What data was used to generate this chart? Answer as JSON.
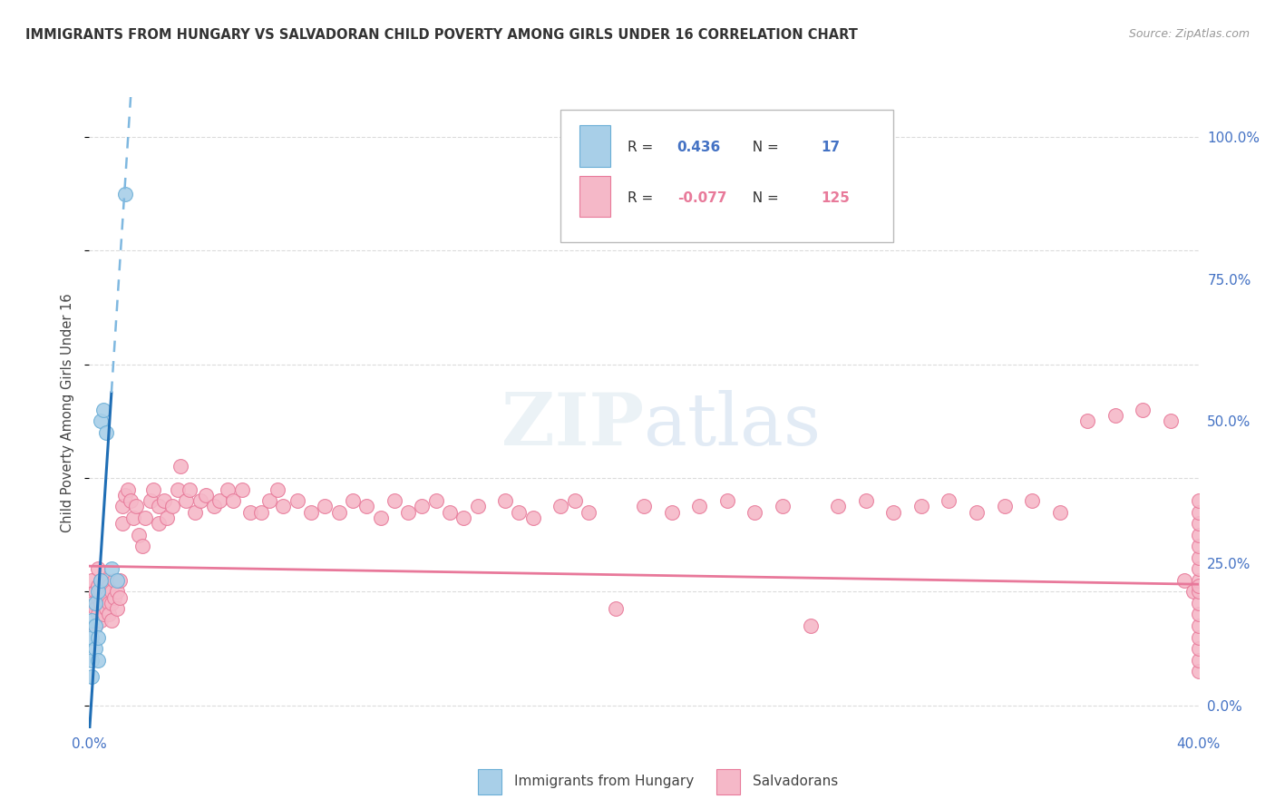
{
  "title": "IMMIGRANTS FROM HUNGARY VS SALVADORAN CHILD POVERTY AMONG GIRLS UNDER 16 CORRELATION CHART",
  "source": "Source: ZipAtlas.com",
  "ylabel": "Child Poverty Among Girls Under 16",
  "x_min": 0.0,
  "x_max": 0.4,
  "y_min": -0.04,
  "y_max": 1.07,
  "y_ticks_right": [
    0.0,
    0.25,
    0.5,
    0.75,
    1.0
  ],
  "y_tick_labels_right": [
    "0.0%",
    "25.0%",
    "50.0%",
    "75.0%",
    "100.0%"
  ],
  "x_ticks": [
    0.0,
    0.1,
    0.2,
    0.3,
    0.4
  ],
  "x_tick_labels": [
    "0.0%",
    "",
    "",
    "",
    "40.0%"
  ],
  "grid_color": "#cccccc",
  "background_color": "#ffffff",
  "hungary_color": "#a8cfe8",
  "hungary_edge_color": "#6aaed6",
  "salvadoran_color": "#f5b8c8",
  "salvadoran_edge_color": "#e87a9a",
  "hungary_R": "0.436",
  "hungary_N": "17",
  "salvadoran_R": "-0.077",
  "salvadoran_N": "125",
  "blue_line_color": "#1f6eb5",
  "blue_dash_color": "#7fb8e0",
  "pink_line_color": "#e8789a",
  "hungary_x": [
    0.001,
    0.001,
    0.001,
    0.001,
    0.002,
    0.002,
    0.002,
    0.003,
    0.003,
    0.003,
    0.004,
    0.004,
    0.005,
    0.006,
    0.008,
    0.01,
    0.013
  ],
  "hungary_y": [
    0.05,
    0.08,
    0.12,
    0.15,
    0.1,
    0.14,
    0.18,
    0.08,
    0.12,
    0.2,
    0.22,
    0.5,
    0.52,
    0.48,
    0.24,
    0.22,
    0.9
  ],
  "salvadoran_x": [
    0.001,
    0.001,
    0.002,
    0.002,
    0.002,
    0.003,
    0.003,
    0.003,
    0.003,
    0.004,
    0.004,
    0.004,
    0.004,
    0.005,
    0.005,
    0.005,
    0.006,
    0.006,
    0.006,
    0.007,
    0.007,
    0.007,
    0.008,
    0.008,
    0.008,
    0.009,
    0.009,
    0.01,
    0.01,
    0.011,
    0.011,
    0.012,
    0.012,
    0.013,
    0.014,
    0.015,
    0.016,
    0.017,
    0.018,
    0.019,
    0.02,
    0.022,
    0.023,
    0.025,
    0.025,
    0.027,
    0.028,
    0.03,
    0.032,
    0.033,
    0.035,
    0.036,
    0.038,
    0.04,
    0.042,
    0.045,
    0.047,
    0.05,
    0.052,
    0.055,
    0.058,
    0.062,
    0.065,
    0.068,
    0.07,
    0.075,
    0.08,
    0.085,
    0.09,
    0.095,
    0.1,
    0.105,
    0.11,
    0.115,
    0.12,
    0.125,
    0.13,
    0.135,
    0.14,
    0.15,
    0.155,
    0.16,
    0.17,
    0.175,
    0.18,
    0.19,
    0.2,
    0.21,
    0.22,
    0.23,
    0.24,
    0.25,
    0.26,
    0.27,
    0.28,
    0.29,
    0.3,
    0.31,
    0.32,
    0.33,
    0.34,
    0.35,
    0.36,
    0.37,
    0.38,
    0.39,
    0.395,
    0.398,
    0.4,
    0.4,
    0.4,
    0.4,
    0.4,
    0.4,
    0.4,
    0.4,
    0.4,
    0.4,
    0.4,
    0.4,
    0.4,
    0.4,
    0.4,
    0.4,
    0.4
  ],
  "salvadoran_y": [
    0.22,
    0.18,
    0.2,
    0.17,
    0.14,
    0.21,
    0.19,
    0.16,
    0.24,
    0.2,
    0.18,
    0.15,
    0.22,
    0.18,
    0.16,
    0.2,
    0.22,
    0.17,
    0.19,
    0.21,
    0.18,
    0.16,
    0.2,
    0.18,
    0.15,
    0.22,
    0.19,
    0.2,
    0.17,
    0.22,
    0.19,
    0.35,
    0.32,
    0.37,
    0.38,
    0.36,
    0.33,
    0.35,
    0.3,
    0.28,
    0.33,
    0.36,
    0.38,
    0.35,
    0.32,
    0.36,
    0.33,
    0.35,
    0.38,
    0.42,
    0.36,
    0.38,
    0.34,
    0.36,
    0.37,
    0.35,
    0.36,
    0.38,
    0.36,
    0.38,
    0.34,
    0.34,
    0.36,
    0.38,
    0.35,
    0.36,
    0.34,
    0.35,
    0.34,
    0.36,
    0.35,
    0.33,
    0.36,
    0.34,
    0.35,
    0.36,
    0.34,
    0.33,
    0.35,
    0.36,
    0.34,
    0.33,
    0.35,
    0.36,
    0.34,
    0.17,
    0.35,
    0.34,
    0.35,
    0.36,
    0.34,
    0.35,
    0.14,
    0.35,
    0.36,
    0.34,
    0.35,
    0.36,
    0.34,
    0.35,
    0.36,
    0.34,
    0.5,
    0.51,
    0.52,
    0.5,
    0.22,
    0.2,
    0.06,
    0.08,
    0.1,
    0.12,
    0.14,
    0.16,
    0.18,
    0.2,
    0.22,
    0.24,
    0.26,
    0.28,
    0.3,
    0.32,
    0.34,
    0.36,
    0.21
  ]
}
